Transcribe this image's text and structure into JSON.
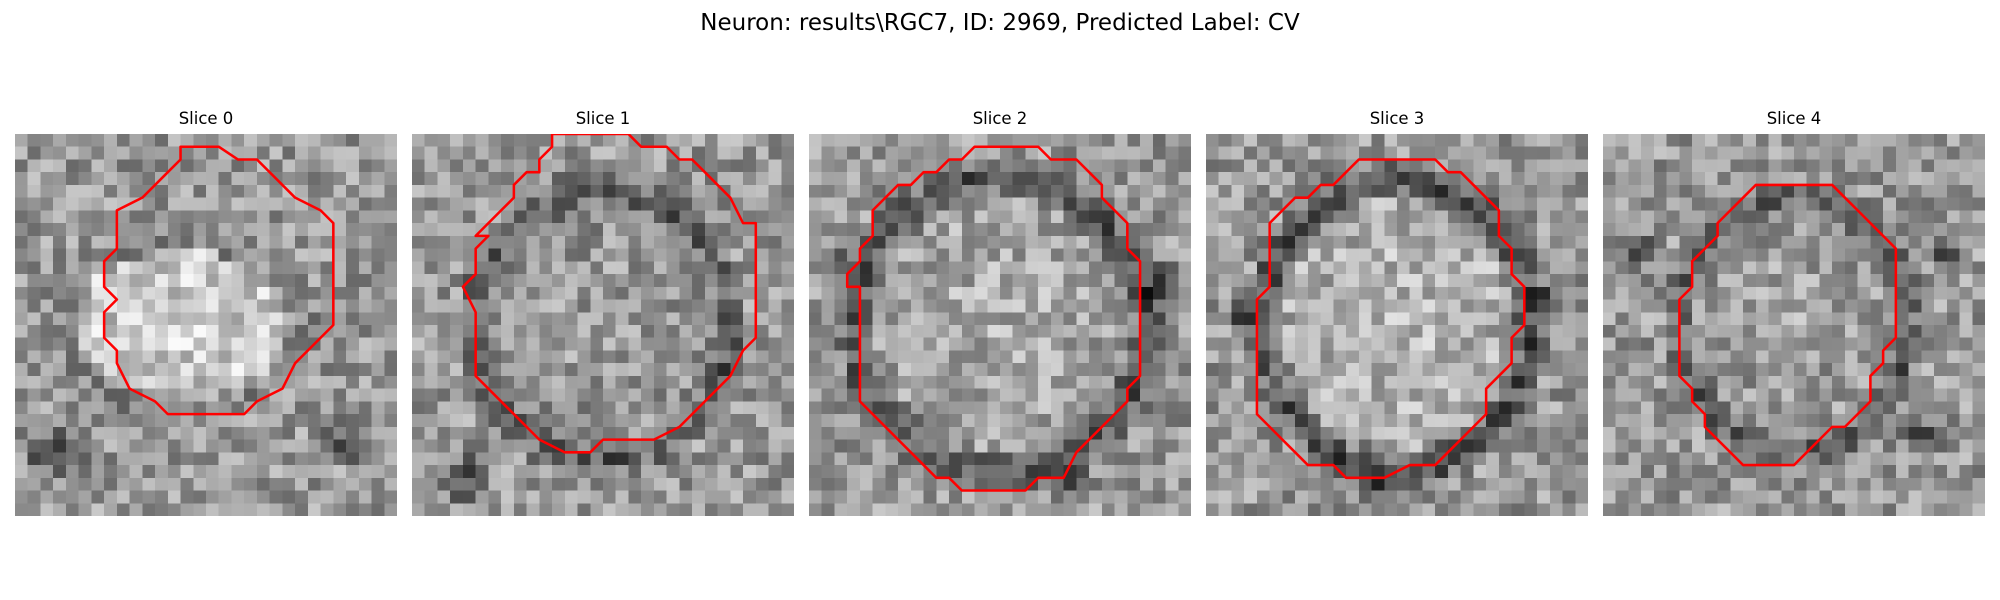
{
  "figure": {
    "title": "Neuron: results\\RGC7, ID: 2969, Predicted Label: CV",
    "slices": [
      {
        "label": "Slice 0"
      },
      {
        "label": "Slice 1"
      },
      {
        "label": "Slice 2"
      },
      {
        "label": "Slice 3"
      },
      {
        "label": "Slice 4"
      }
    ]
  },
  "colors": {
    "contour": "#ff0000",
    "background": "#ffffff"
  }
}
